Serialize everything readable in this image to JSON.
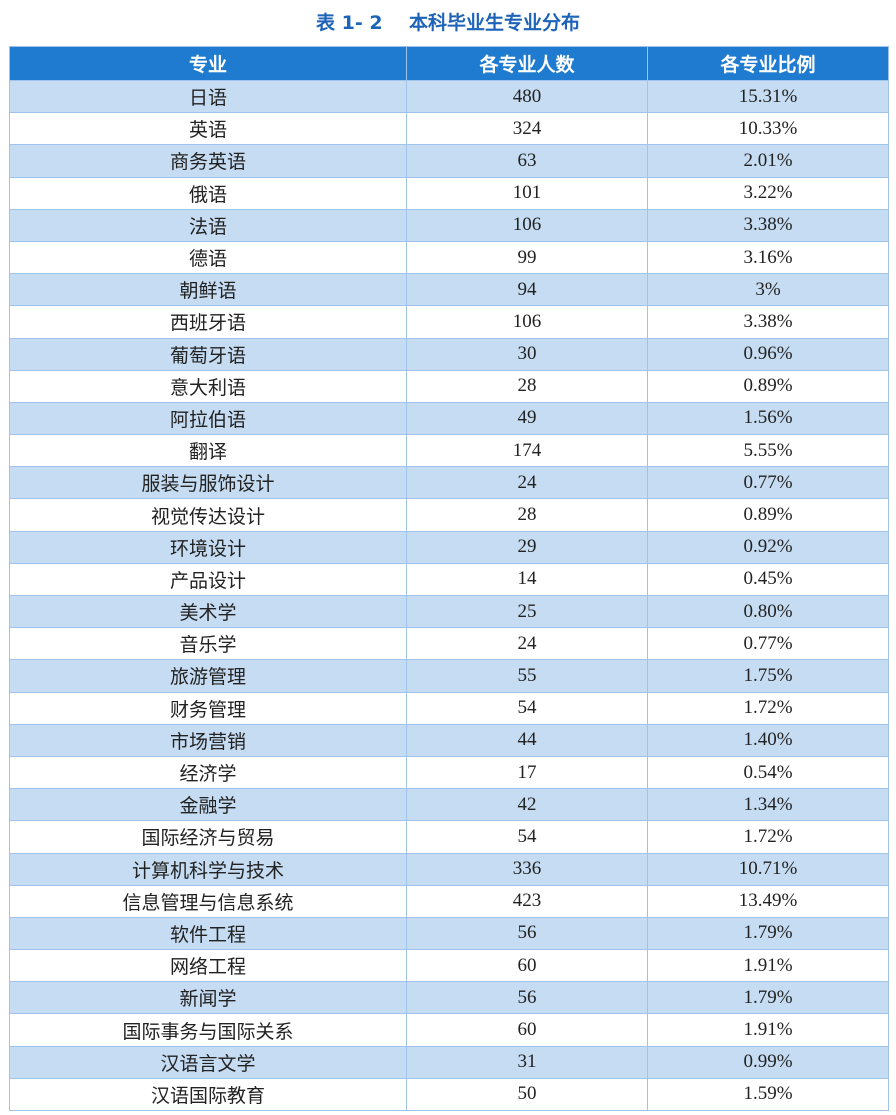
{
  "title": "表 1- 2    本科毕业生专业分布",
  "table": {
    "header": [
      "专业",
      "各专业人数",
      "各专业比例"
    ],
    "rows": [
      [
        "日语",
        "480",
        "15.31%"
      ],
      [
        "英语",
        "324",
        "10.33%"
      ],
      [
        "商务英语",
        "63",
        "2.01%"
      ],
      [
        "俄语",
        "101",
        "3.22%"
      ],
      [
        "法语",
        "106",
        "3.38%"
      ],
      [
        "德语",
        "99",
        "3.16%"
      ],
      [
        "朝鲜语",
        "94",
        "3%"
      ],
      [
        "西班牙语",
        "106",
        "3.38%"
      ],
      [
        "葡萄牙语",
        "30",
        "0.96%"
      ],
      [
        "意大利语",
        "28",
        "0.89%"
      ],
      [
        "阿拉伯语",
        "49",
        "1.56%"
      ],
      [
        "翻译",
        "174",
        "5.55%"
      ],
      [
        "服装与服饰设计",
        "24",
        "0.77%"
      ],
      [
        "视觉传达设计",
        "28",
        "0.89%"
      ],
      [
        "环境设计",
        "29",
        "0.92%"
      ],
      [
        "产品设计",
        "14",
        "0.45%"
      ],
      [
        "美术学",
        "25",
        "0.80%"
      ],
      [
        "音乐学",
        "24",
        "0.77%"
      ],
      [
        "旅游管理",
        "55",
        "1.75%"
      ],
      [
        "财务管理",
        "54",
        "1.72%"
      ],
      [
        "市场营销",
        "44",
        "1.40%"
      ],
      [
        "经济学",
        "17",
        "0.54%"
      ],
      [
        "金融学",
        "42",
        "1.34%"
      ],
      [
        "国际经济与贸易",
        "54",
        "1.72%"
      ],
      [
        "计算机科学与技术",
        "336",
        "10.71%"
      ],
      [
        "信息管理与信息系统",
        "423",
        "13.49%"
      ],
      [
        "软件工程",
        "56",
        "1.79%"
      ],
      [
        "网络工程",
        "60",
        "1.91%"
      ],
      [
        "新闻学",
        "56",
        "1.79%"
      ],
      [
        "国际事务与国际关系",
        "60",
        "1.91%"
      ],
      [
        "汉语言文学",
        "31",
        "0.99%"
      ],
      [
        "汉语国际教育",
        "50",
        "1.59%"
      ]
    ]
  }
}
